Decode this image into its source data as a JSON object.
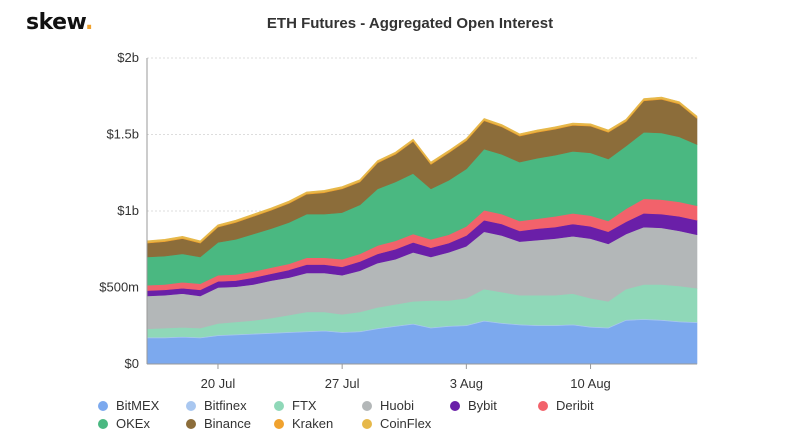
{
  "brand": {
    "name": "skew",
    "dot": "."
  },
  "chart_data": {
    "type": "area",
    "stacked": true,
    "title": "ETH Futures - Aggregated Open Interest",
    "xlabel": "",
    "ylabel": "",
    "ylim": [
      0,
      2000
    ],
    "y_unit": "millions USD",
    "yticks": [
      {
        "value": 0,
        "label": "$0"
      },
      {
        "value": 500,
        "label": "$500m"
      },
      {
        "value": 1000,
        "label": "$1b"
      },
      {
        "value": 1500,
        "label": "$1.5b"
      },
      {
        "value": 2000,
        "label": "$2b"
      }
    ],
    "x": [
      "Jul 16",
      "Jul 17",
      "Jul 18",
      "Jul 19",
      "Jul 20",
      "Jul 21",
      "Jul 22",
      "Jul 23",
      "Jul 24",
      "Jul 25",
      "Jul 26",
      "Jul 27",
      "Jul 28",
      "Jul 29",
      "Jul 30",
      "Jul 31",
      "Aug 1",
      "Aug 2",
      "Aug 3",
      "Aug 4",
      "Aug 5",
      "Aug 6",
      "Aug 7",
      "Aug 8",
      "Aug 9",
      "Aug 10",
      "Aug 11",
      "Aug 12",
      "Aug 13",
      "Aug 14",
      "Aug 15",
      "Aug 16"
    ],
    "xticks": [
      {
        "index": 4,
        "label": "20 Jul"
      },
      {
        "index": 11,
        "label": "27 Jul"
      },
      {
        "index": 18,
        "label": "3 Aug"
      },
      {
        "index": 25,
        "label": "10 Aug"
      }
    ],
    "grid": true,
    "legend_position": "bottom",
    "series": [
      {
        "name": "BitMEX",
        "color": "#7ca9ee",
        "values": [
          170,
          170,
          175,
          170,
          185,
          190,
          195,
          200,
          205,
          210,
          215,
          205,
          210,
          230,
          245,
          260,
          235,
          245,
          250,
          280,
          265,
          255,
          250,
          250,
          255,
          240,
          235,
          285,
          290,
          285,
          275,
          270
        ]
      },
      {
        "name": "Bitfinex",
        "color": "#a9c7f0",
        "values": [
          5,
          5,
          5,
          5,
          5,
          5,
          5,
          5,
          5,
          5,
          5,
          5,
          5,
          5,
          5,
          5,
          5,
          5,
          5,
          5,
          5,
          5,
          5,
          5,
          5,
          5,
          5,
          5,
          5,
          5,
          5,
          5
        ]
      },
      {
        "name": "FTX",
        "color": "#8fd8b8",
        "values": [
          55,
          60,
          60,
          60,
          75,
          80,
          85,
          95,
          110,
          125,
          120,
          115,
          125,
          135,
          140,
          145,
          175,
          165,
          175,
          205,
          200,
          190,
          195,
          195,
          200,
          185,
          170,
          200,
          225,
          230,
          230,
          220
        ]
      },
      {
        "name": "Huobi",
        "color": "#b3b7b8",
        "values": [
          215,
          215,
          220,
          210,
          235,
          230,
          235,
          245,
          245,
          255,
          255,
          255,
          270,
          290,
          295,
          320,
          285,
          315,
          340,
          375,
          370,
          350,
          360,
          370,
          375,
          390,
          375,
          360,
          375,
          370,
          360,
          350
        ]
      },
      {
        "name": "Bybit",
        "color": "#6a1fa8",
        "values": [
          35,
          35,
          35,
          40,
          40,
          40,
          45,
          45,
          50,
          55,
          55,
          55,
          60,
          60,
          65,
          65,
          60,
          60,
          70,
          75,
          75,
          70,
          75,
          75,
          80,
          80,
          80,
          80,
          90,
          90,
          95,
          95
        ]
      },
      {
        "name": "Deribit",
        "color": "#f2626b",
        "values": [
          35,
          35,
          40,
          40,
          40,
          40,
          40,
          40,
          40,
          45,
          45,
          50,
          50,
          55,
          55,
          55,
          55,
          55,
          60,
          65,
          65,
          65,
          65,
          70,
          70,
          70,
          70,
          85,
          95,
          95,
          95,
          95
        ]
      },
      {
        "name": "OKEx",
        "color": "#4ab881",
        "values": [
          185,
          185,
          185,
          175,
          215,
          230,
          245,
          255,
          270,
          285,
          285,
          305,
          320,
          370,
          385,
          395,
          330,
          355,
          375,
          400,
          390,
          385,
          395,
          400,
          405,
          410,
          405,
          410,
          435,
          435,
          425,
          400
        ]
      },
      {
        "name": "Binance",
        "color": "#8c6d3a",
        "values": [
          90,
          95,
          100,
          90,
          100,
          110,
          115,
          120,
          125,
          130,
          140,
          155,
          150,
          170,
          180,
          210,
          160,
          180,
          185,
          185,
          180,
          170,
          170,
          170,
          170,
          175,
          175,
          160,
          205,
          220,
          215,
          170
        ]
      },
      {
        "name": "Kraken",
        "color": "#f0a22e",
        "values": [
          5,
          5,
          5,
          5,
          5,
          5,
          5,
          5,
          5,
          5,
          5,
          5,
          5,
          5,
          5,
          5,
          5,
          5,
          5,
          5,
          5,
          5,
          5,
          5,
          5,
          5,
          5,
          5,
          5,
          5,
          5,
          5
        ]
      },
      {
        "name": "CoinFlex",
        "color": "#e6b84a",
        "values": [
          10,
          10,
          10,
          10,
          10,
          10,
          10,
          10,
          10,
          10,
          10,
          10,
          10,
          10,
          10,
          10,
          10,
          10,
          10,
          10,
          10,
          10,
          10,
          10,
          10,
          10,
          10,
          10,
          10,
          10,
          10,
          10
        ]
      }
    ]
  }
}
